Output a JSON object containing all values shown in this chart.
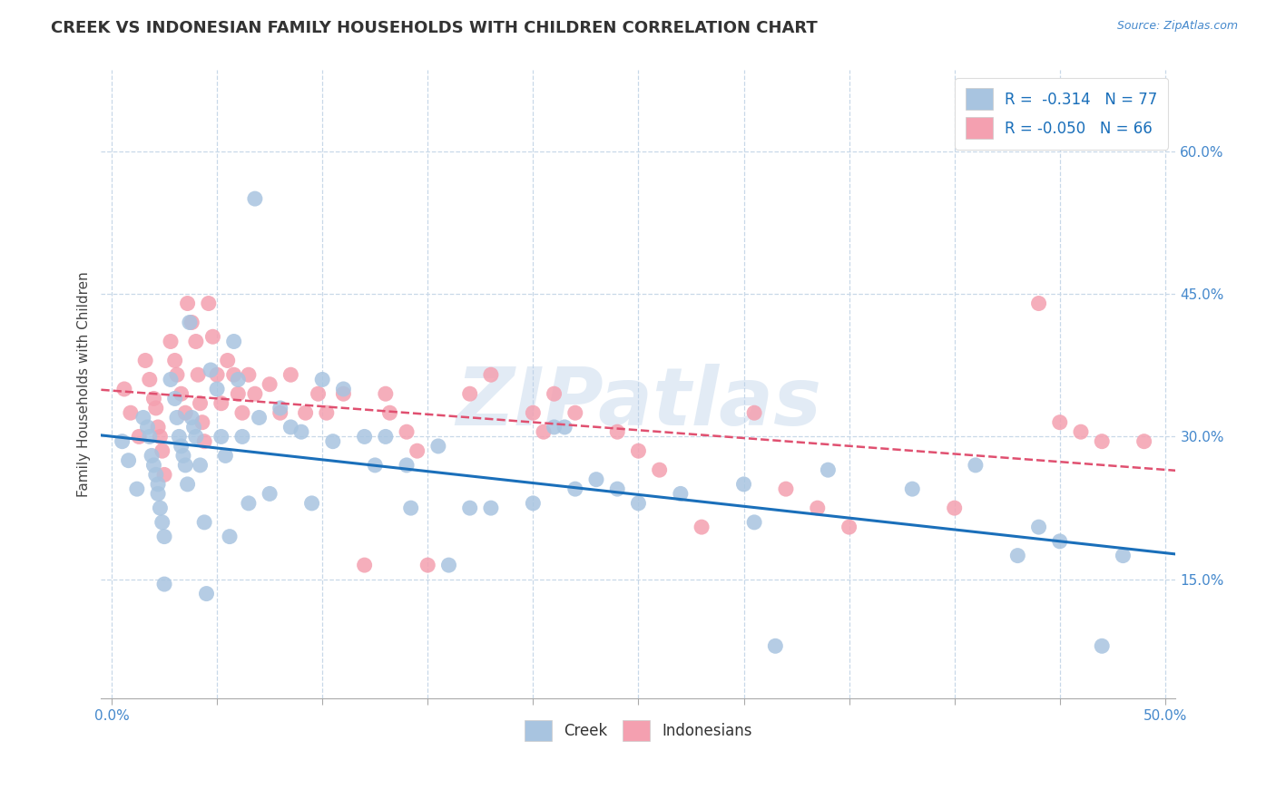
{
  "title": "CREEK VS INDONESIAN FAMILY HOUSEHOLDS WITH CHILDREN CORRELATION CHART",
  "source": "Source: ZipAtlas.com",
  "ylabel": "Family Households with Children",
  "ytick_labels": [
    "15.0%",
    "30.0%",
    "45.0%",
    "60.0%"
  ],
  "ytick_values": [
    0.15,
    0.3,
    0.45,
    0.6
  ],
  "xtick_values": [
    0.0,
    0.05,
    0.1,
    0.15,
    0.2,
    0.25,
    0.3,
    0.35,
    0.4,
    0.45,
    0.5
  ],
  "xlim": [
    -0.005,
    0.505
  ],
  "ylim": [
    0.025,
    0.685
  ],
  "creek_color": "#a8c4e0",
  "indonesian_color": "#f4a0b0",
  "creek_line_color": "#1a6fba",
  "indonesian_line_color": "#e05070",
  "legend_creek_R": "-0.314",
  "legend_creek_N": "77",
  "legend_indonesian_R": "-0.050",
  "legend_indonesian_N": "66",
  "legend_text_color": "#1a6fba",
  "watermark": "ZIPatlas",
  "creek_scatter_x": [
    0.005,
    0.008,
    0.012,
    0.015,
    0.017,
    0.018,
    0.019,
    0.02,
    0.021,
    0.022,
    0.022,
    0.023,
    0.024,
    0.025,
    0.025,
    0.028,
    0.03,
    0.031,
    0.032,
    0.033,
    0.034,
    0.035,
    0.036,
    0.037,
    0.038,
    0.039,
    0.04,
    0.042,
    0.044,
    0.045,
    0.047,
    0.05,
    0.052,
    0.054,
    0.056,
    0.058,
    0.06,
    0.062,
    0.065,
    0.068,
    0.07,
    0.075,
    0.08,
    0.085,
    0.09,
    0.095,
    0.1,
    0.105,
    0.11,
    0.12,
    0.125,
    0.13,
    0.14,
    0.142,
    0.155,
    0.16,
    0.17,
    0.18,
    0.2,
    0.21,
    0.215,
    0.22,
    0.23,
    0.24,
    0.25,
    0.27,
    0.3,
    0.305,
    0.315,
    0.34,
    0.38,
    0.41,
    0.43,
    0.44,
    0.45,
    0.47,
    0.48
  ],
  "creek_scatter_y": [
    0.295,
    0.275,
    0.245,
    0.32,
    0.31,
    0.3,
    0.28,
    0.27,
    0.26,
    0.25,
    0.24,
    0.225,
    0.21,
    0.195,
    0.145,
    0.36,
    0.34,
    0.32,
    0.3,
    0.29,
    0.28,
    0.27,
    0.25,
    0.42,
    0.32,
    0.31,
    0.3,
    0.27,
    0.21,
    0.135,
    0.37,
    0.35,
    0.3,
    0.28,
    0.195,
    0.4,
    0.36,
    0.3,
    0.23,
    0.55,
    0.32,
    0.24,
    0.33,
    0.31,
    0.305,
    0.23,
    0.36,
    0.295,
    0.35,
    0.3,
    0.27,
    0.3,
    0.27,
    0.225,
    0.29,
    0.165,
    0.225,
    0.225,
    0.23,
    0.31,
    0.31,
    0.245,
    0.255,
    0.245,
    0.23,
    0.24,
    0.25,
    0.21,
    0.08,
    0.265,
    0.245,
    0.27,
    0.175,
    0.205,
    0.19,
    0.08,
    0.175
  ],
  "indonesian_scatter_x": [
    0.006,
    0.009,
    0.013,
    0.016,
    0.018,
    0.02,
    0.021,
    0.022,
    0.023,
    0.024,
    0.025,
    0.028,
    0.03,
    0.031,
    0.033,
    0.035,
    0.036,
    0.038,
    0.04,
    0.041,
    0.042,
    0.043,
    0.044,
    0.046,
    0.048,
    0.05,
    0.052,
    0.055,
    0.058,
    0.06,
    0.062,
    0.065,
    0.068,
    0.075,
    0.08,
    0.085,
    0.092,
    0.098,
    0.102,
    0.11,
    0.12,
    0.13,
    0.132,
    0.14,
    0.145,
    0.15,
    0.17,
    0.18,
    0.2,
    0.205,
    0.21,
    0.22,
    0.24,
    0.25,
    0.26,
    0.28,
    0.305,
    0.32,
    0.335,
    0.35,
    0.4,
    0.44,
    0.45,
    0.46,
    0.47,
    0.49
  ],
  "indonesian_scatter_y": [
    0.35,
    0.325,
    0.3,
    0.38,
    0.36,
    0.34,
    0.33,
    0.31,
    0.3,
    0.285,
    0.26,
    0.4,
    0.38,
    0.365,
    0.345,
    0.325,
    0.44,
    0.42,
    0.4,
    0.365,
    0.335,
    0.315,
    0.295,
    0.44,
    0.405,
    0.365,
    0.335,
    0.38,
    0.365,
    0.345,
    0.325,
    0.365,
    0.345,
    0.355,
    0.325,
    0.365,
    0.325,
    0.345,
    0.325,
    0.345,
    0.165,
    0.345,
    0.325,
    0.305,
    0.285,
    0.165,
    0.345,
    0.365,
    0.325,
    0.305,
    0.345,
    0.325,
    0.305,
    0.285,
    0.265,
    0.205,
    0.325,
    0.245,
    0.225,
    0.205,
    0.225,
    0.44,
    0.315,
    0.305,
    0.295,
    0.295
  ],
  "background_color": "#ffffff",
  "grid_color": "#c8d8e8",
  "title_fontsize": 13,
  "axis_label_fontsize": 11,
  "tick_fontsize": 11,
  "tick_color": "#4488cc"
}
